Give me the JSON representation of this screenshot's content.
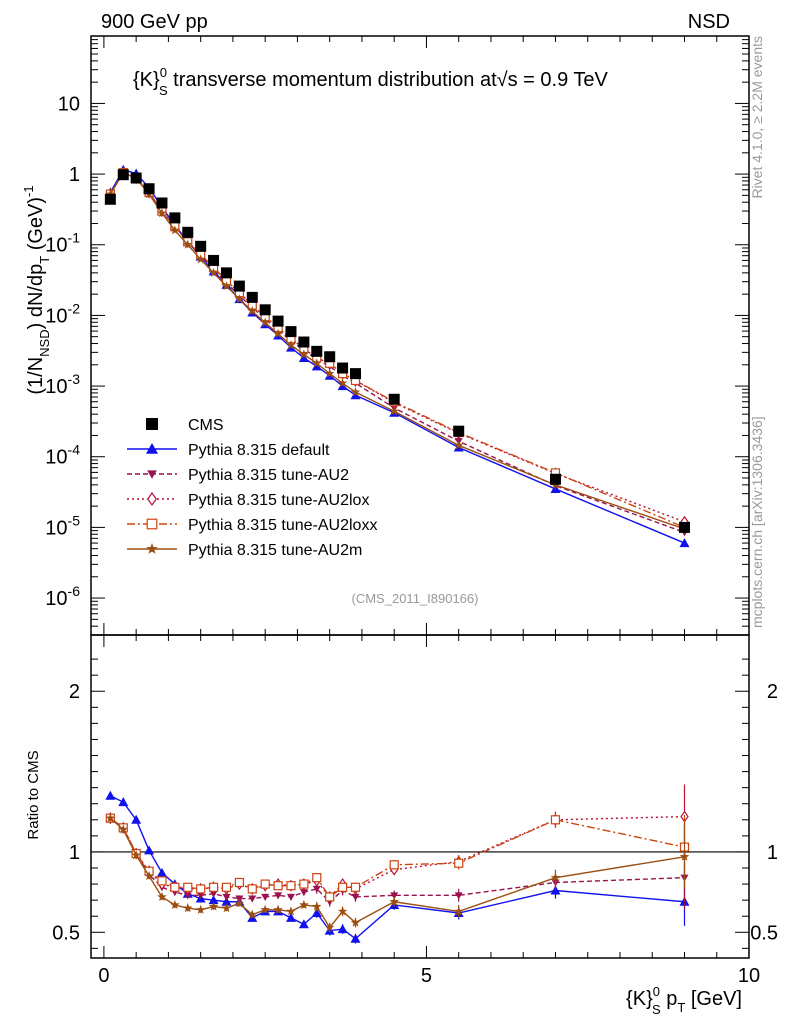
{
  "header": {
    "left": "900 GeV pp",
    "right": "NSD"
  },
  "side_text": {
    "rivet": "Rivet 4.1.0, ≥ 2.2M events",
    "mcplots": "mcplots.cern.ch [arXiv:1306.3436]"
  },
  "main_title": "{K}⁰ₛ transverse momentum distribution at√s = 0.9 TeV",
  "main_title_parts": {
    "prefix": "{K}",
    "sup": "0",
    "sub": "S",
    "middle": " transverse momentum distribution at",
    "sqrt": "√s",
    "suffix": " = 0.9 TeV"
  },
  "analysis_tag": "(CMS_2011_I890166)",
  "colors": {
    "cms": "#000000",
    "default": "#1111ee",
    "au2": "#99114f",
    "au2lox": "#bb1133",
    "au2loxx": "#cc4411",
    "au2m": "#9c4f12"
  },
  "chart_data": [
    {
      "type": "line",
      "panel": "main",
      "log_y": true,
      "ylabel": "(1/N_NSD) dN/dp_T (GeV)^-1",
      "ylabel_parts": {
        "a": "(1/N",
        "a_sub": "NSD",
        "b": ") dN/dp",
        "b_sub": "T",
        "c": " (GeV)",
        "c_sup": "-1"
      },
      "xlim": [
        -0.2,
        10.0
      ],
      "ylim": [
        3e-07,
        90
      ],
      "y_ticks": [
        {
          "value": 1e-06,
          "base": "10",
          "exp": "-6"
        },
        {
          "value": 1e-05,
          "base": "10",
          "exp": "-5"
        },
        {
          "value": 0.0001,
          "base": "10",
          "exp": "-4"
        },
        {
          "value": 0.001,
          "base": "10",
          "exp": "-3"
        },
        {
          "value": 0.01,
          "base": "10",
          "exp": "-2"
        },
        {
          "value": 0.1,
          "base": "10",
          "exp": "-1"
        },
        {
          "value": 1,
          "base": "1",
          "exp": ""
        },
        {
          "value": 10,
          "base": "10",
          "exp": ""
        }
      ],
      "x": [
        0.1,
        0.3,
        0.5,
        0.7,
        0.9,
        1.1,
        1.3,
        1.5,
        1.7,
        1.9,
        2.1,
        2.3,
        2.5,
        2.7,
        2.9,
        3.1,
        3.3,
        3.5,
        3.7,
        3.9,
        4.5,
        5.5,
        7.0,
        9.0
      ],
      "cms": [
        0.44,
        0.98,
        0.88,
        0.62,
        0.39,
        0.24,
        0.15,
        0.095,
        0.06,
        0.04,
        0.026,
        0.018,
        0.012,
        0.0083,
        0.0059,
        0.0042,
        0.0031,
        0.0026,
        0.0018,
        0.0015,
        0.00065,
        0.00023,
        4.8e-05,
        1e-05
      ],
      "series": [
        {
          "key": "default",
          "name": "Pythia 8.315 default",
          "marker": "triangle-up",
          "dash": "",
          "values": [
            0.55,
            1.15,
            1.02,
            0.64,
            0.34,
            0.19,
            0.11,
            0.068,
            0.042,
            0.027,
            0.017,
            0.011,
            0.0075,
            0.0052,
            0.0035,
            0.0025,
            0.0019,
            0.0014,
            0.001,
            0.00074,
            0.00042,
            0.000135,
            3.5e-05,
            6e-06
          ]
        },
        {
          "key": "au2",
          "name": "Pythia 8.315 tune-AU2",
          "marker": "triangle-down",
          "dash": "5,3",
          "values": [
            0.52,
            1.05,
            0.87,
            0.55,
            0.3,
            0.18,
            0.11,
            0.07,
            0.045,
            0.029,
            0.019,
            0.013,
            0.0089,
            0.0062,
            0.0044,
            0.0032,
            0.0024,
            0.0019,
            0.0014,
            0.0011,
            0.00049,
            0.000166,
            3.9e-05,
            8.5e-06
          ]
        },
        {
          "key": "au2lox",
          "name": "Pythia 8.315 tune-AU2lox",
          "marker": "diamond-open",
          "dash": "2,3",
          "values": [
            0.52,
            1.05,
            0.87,
            0.55,
            0.3,
            0.18,
            0.11,
            0.072,
            0.047,
            0.031,
            0.021,
            0.014,
            0.0096,
            0.0067,
            0.0047,
            0.0034,
            0.0025,
            0.0021,
            0.0015,
            0.0012,
            0.00058,
            0.000215,
            5.8e-05,
            1.2e-05
          ]
        },
        {
          "key": "au2loxx",
          "name": "Pythia 8.315 tune-AU2loxx",
          "marker": "square-open",
          "dash": "8,3,2,3",
          "values": [
            0.52,
            1.05,
            0.87,
            0.55,
            0.3,
            0.18,
            0.11,
            0.073,
            0.048,
            0.031,
            0.021,
            0.014,
            0.0096,
            0.0067,
            0.0047,
            0.0034,
            0.0025,
            0.0021,
            0.0015,
            0.0012,
            0.0006,
            0.00022,
            5.9e-05,
            1e-05
          ]
        },
        {
          "key": "au2m",
          "name": "Pythia 8.315 tune-AU2m",
          "marker": "star",
          "dash": "",
          "values": [
            0.52,
            1.05,
            0.87,
            0.52,
            0.28,
            0.16,
            0.1,
            0.062,
            0.04,
            0.026,
            0.017,
            0.0115,
            0.0079,
            0.0055,
            0.0038,
            0.0028,
            0.0021,
            0.0015,
            0.0011,
            0.00082,
            0.00044,
            0.000145,
            4e-05,
            9.5e-06
          ]
        }
      ]
    },
    {
      "type": "line",
      "panel": "ratio",
      "ylabel": "Ratio to CMS",
      "xlabel": "{K}⁰ₛ p_T [GeV]",
      "xlabel_parts": {
        "prefix": "{K}",
        "sup": "0",
        "sub": "S",
        "mid": " p",
        "mid_sub": "T",
        "suffix": " [GeV]"
      },
      "xlim": [
        -0.2,
        10.0
      ],
      "ylim": [
        0.34,
        2.35
      ],
      "x_ticks": [
        {
          "value": 0,
          "label": "0"
        },
        {
          "value": 5,
          "label": "5"
        },
        {
          "value": 10,
          "label": "10"
        }
      ],
      "y_ticks": [
        {
          "value": 0.5,
          "label": "0.5"
        },
        {
          "value": 1,
          "label": "1"
        },
        {
          "value": 2,
          "label": "2"
        }
      ],
      "reference_line": 1,
      "x": [
        0.1,
        0.3,
        0.5,
        0.7,
        0.9,
        1.1,
        1.3,
        1.5,
        1.7,
        1.9,
        2.1,
        2.3,
        2.5,
        2.7,
        2.9,
        3.1,
        3.3,
        3.5,
        3.7,
        3.9,
        4.5,
        5.5,
        7.0,
        9.0
      ],
      "series": [
        {
          "key": "default",
          "marker": "triangle-up",
          "dash": "",
          "values": [
            1.35,
            1.31,
            1.2,
            1.01,
            0.87,
            0.8,
            0.74,
            0.71,
            0.7,
            0.69,
            0.69,
            0.59,
            0.63,
            0.63,
            0.59,
            0.55,
            0.62,
            0.51,
            0.52,
            0.46,
            0.67,
            0.62,
            0.76,
            0.69
          ],
          "errors": [
            0.02,
            0.02,
            0.02,
            0.02,
            0.02,
            0.02,
            0.02,
            0.02,
            0.02,
            0.02,
            0.02,
            0.02,
            0.02,
            0.02,
            0.02,
            0.02,
            0.03,
            0.03,
            0.03,
            0.03,
            0.03,
            0.04,
            0.05,
            0.15
          ]
        },
        {
          "key": "au2",
          "marker": "triangle-down",
          "dash": "5,3",
          "values": [
            1.21,
            1.15,
            0.99,
            0.86,
            0.78,
            0.75,
            0.73,
            0.73,
            0.74,
            0.72,
            0.71,
            0.71,
            0.72,
            0.73,
            0.72,
            0.75,
            0.77,
            0.69,
            0.76,
            0.72,
            0.73,
            0.73,
            0.81,
            0.84
          ],
          "errors": [
            0.02,
            0.02,
            0.02,
            0.02,
            0.02,
            0.02,
            0.02,
            0.02,
            0.02,
            0.02,
            0.02,
            0.02,
            0.02,
            0.02,
            0.02,
            0.02,
            0.03,
            0.03,
            0.03,
            0.03,
            0.03,
            0.04,
            0.05,
            0.2
          ]
        },
        {
          "key": "au2lox",
          "marker": "diamond-open",
          "dash": "2,3",
          "values": [
            1.21,
            1.15,
            0.99,
            0.88,
            0.8,
            0.78,
            0.77,
            0.77,
            0.78,
            0.77,
            0.8,
            0.77,
            0.79,
            0.8,
            0.79,
            0.8,
            0.82,
            0.72,
            0.8,
            0.77,
            0.89,
            0.94,
            1.2,
            1.22
          ],
          "errors": [
            0.02,
            0.02,
            0.02,
            0.02,
            0.02,
            0.02,
            0.02,
            0.02,
            0.02,
            0.02,
            0.02,
            0.02,
            0.02,
            0.02,
            0.02,
            0.02,
            0.03,
            0.03,
            0.03,
            0.03,
            0.03,
            0.04,
            0.05,
            0.2
          ]
        },
        {
          "key": "au2loxx",
          "marker": "square-open",
          "dash": "8,3,2,3",
          "values": [
            1.21,
            1.15,
            0.99,
            0.88,
            0.82,
            0.78,
            0.78,
            0.77,
            0.78,
            0.78,
            0.81,
            0.77,
            0.8,
            0.79,
            0.79,
            0.8,
            0.84,
            0.72,
            0.78,
            0.78,
            0.92,
            0.93,
            1.2,
            1.03
          ],
          "errors": [
            0.02,
            0.02,
            0.02,
            0.02,
            0.02,
            0.02,
            0.02,
            0.02,
            0.02,
            0.02,
            0.02,
            0.02,
            0.02,
            0.02,
            0.02,
            0.02,
            0.03,
            0.03,
            0.03,
            0.03,
            0.03,
            0.04,
            0.05,
            0.2
          ]
        },
        {
          "key": "au2m",
          "marker": "star",
          "dash": "",
          "values": [
            1.21,
            1.14,
            0.98,
            0.85,
            0.72,
            0.67,
            0.65,
            0.64,
            0.66,
            0.65,
            0.68,
            0.61,
            0.64,
            0.64,
            0.63,
            0.67,
            0.66,
            0.53,
            0.63,
            0.56,
            0.69,
            0.63,
            0.84,
            0.97
          ],
          "errors": [
            0.02,
            0.02,
            0.02,
            0.02,
            0.02,
            0.02,
            0.02,
            0.02,
            0.02,
            0.02,
            0.02,
            0.02,
            0.02,
            0.02,
            0.02,
            0.02,
            0.03,
            0.03,
            0.03,
            0.03,
            0.03,
            0.04,
            0.05,
            0.2
          ]
        }
      ]
    }
  ],
  "legend": [
    {
      "key": "cms",
      "label": "CMS"
    },
    {
      "key": "default",
      "label": "Pythia 8.315 default"
    },
    {
      "key": "au2",
      "label": "Pythia 8.315 tune-AU2"
    },
    {
      "key": "au2lox",
      "label": "Pythia 8.315 tune-AU2lox"
    },
    {
      "key": "au2loxx",
      "label": "Pythia 8.315 tune-AU2loxx"
    },
    {
      "key": "au2m",
      "label": "Pythia 8.315 tune-AU2m"
    }
  ]
}
